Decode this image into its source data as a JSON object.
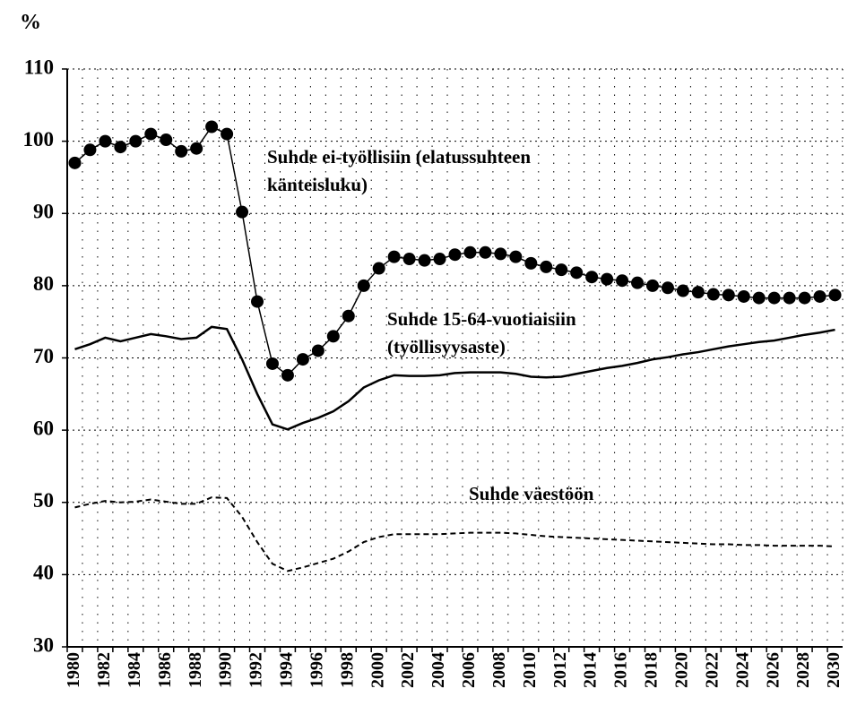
{
  "chart_data": {
    "type": "line",
    "y_label": "%",
    "categories": [
      "1980",
      null,
      "1982",
      null,
      "1984",
      null,
      "1986",
      null,
      "1988",
      null,
      "1990",
      null,
      "1992",
      null,
      "1994",
      null,
      "1996",
      null,
      "1998",
      null,
      "2000",
      null,
      "2002",
      null,
      "2004",
      null,
      "2006",
      null,
      "2008",
      null,
      "2010",
      null,
      "2012",
      null,
      "2014",
      null,
      "2016",
      null,
      "2018",
      null,
      "2020",
      null,
      "2022",
      null,
      "2024",
      null,
      "2026",
      null,
      "2028",
      null,
      "2030"
    ],
    "ylim": [
      30,
      110
    ],
    "yticks": [
      30,
      40,
      50,
      60,
      70,
      80,
      90,
      100,
      110
    ],
    "grid": true,
    "series": [
      {
        "color": "#000000",
        "style": "solid",
        "marker": "circle",
        "values": [
          97,
          98.8,
          100,
          99.2,
          100,
          101,
          100.2,
          98.6,
          99,
          102,
          101,
          90.2,
          77.8,
          69.2,
          67.6,
          69.8,
          71,
          73,
          75.8,
          80,
          82.4,
          84,
          83.7,
          83.5,
          83.7,
          84.3,
          84.6,
          84.6,
          84.4,
          84,
          83.1,
          82.6,
          82.2,
          81.8,
          81.2,
          80.9,
          80.7,
          80.4,
          80,
          79.7,
          79.3,
          79.1,
          78.8,
          78.7,
          78.5,
          78.3,
          78.3,
          78.3,
          78.3,
          78.5,
          78.7
        ]
      },
      {
        "color": "#000000",
        "style": "solid",
        "marker": "none",
        "values": [
          71.2,
          71.9,
          72.8,
          72.3,
          72.8,
          73.3,
          73,
          72.6,
          72.8,
          74.3,
          74,
          69.8,
          65,
          60.8,
          60.1,
          61,
          61.7,
          62.6,
          64,
          65.9,
          66.9,
          67.6,
          67.5,
          67.5,
          67.6,
          67.9,
          68,
          68,
          68,
          67.8,
          67.4,
          67.3,
          67.4,
          67.8,
          68.2,
          68.6,
          68.9,
          69.3,
          69.8,
          70.1,
          70.5,
          70.8,
          71.2,
          71.6,
          71.9,
          72.2,
          72.4,
          72.8,
          73.2,
          73.5,
          73.9
        ]
      },
      {
        "color": "#000000",
        "style": "dashed",
        "marker": "none",
        "values": [
          49.3,
          49.8,
          50.2,
          50,
          50.1,
          50.4,
          50.1,
          49.8,
          49.8,
          50.7,
          50.6,
          48,
          44.5,
          41.5,
          40.5,
          41,
          41.6,
          42.2,
          43.2,
          44.5,
          45.2,
          45.6,
          45.6,
          45.6,
          45.6,
          45.7,
          45.8,
          45.8,
          45.8,
          45.7,
          45.5,
          45.3,
          45.2,
          45.1,
          45,
          44.9,
          44.8,
          44.7,
          44.6,
          44.5,
          44.4,
          44.3,
          44.2,
          44.2,
          44.1,
          44.1,
          44,
          44,
          44,
          44,
          43.9
        ]
      }
    ],
    "annotations": [
      {
        "lines": [
          "Suhde ei-työllisiin (elatussuhteen",
          "känteisluku)"
        ]
      },
      {
        "lines": [
          "Suhde 15-64-vuotiaisiin",
          "(työllisyysaste)"
        ]
      },
      {
        "lines": [
          "Suhde väestöön"
        ]
      }
    ]
  }
}
